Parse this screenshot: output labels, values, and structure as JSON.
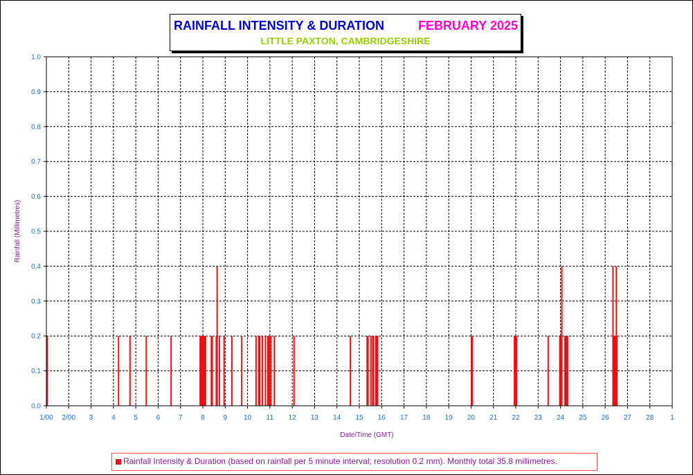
{
  "title": {
    "main": "RAINFALL INTENSITY & DURATION",
    "month": "FEBRUARY 2025",
    "location": "LITTLE PAXTON, CAMBRIDGESHIRE"
  },
  "colors": {
    "title_main": "#0000cc",
    "title_month": "#ff00cc",
    "title_location": "#99cc00",
    "series": "#ee1111",
    "axis_labels": "#8a1a99",
    "tick_labels": "#1a6fc4",
    "grid": "#000000"
  },
  "chart_data": {
    "type": "bar",
    "title": "RAINFALL INTENSITY & DURATION",
    "xlabel": "Date/Time (GMT)",
    "ylabel": "Rainfall (Millimetres)",
    "xlim": [
      1,
      29
    ],
    "ylim": [
      0,
      1.0
    ],
    "grid": true,
    "legend_position": "bottom",
    "x_ticks": [
      1,
      2,
      3,
      4,
      5,
      6,
      7,
      8,
      9,
      10,
      11,
      12,
      13,
      14,
      15,
      16,
      17,
      18,
      19,
      20,
      21,
      22,
      23,
      24,
      25,
      26,
      27,
      28,
      29
    ],
    "x_tick_labels": [
      "1/00",
      "2/00",
      "3",
      "4",
      "5",
      "6",
      "7",
      "8",
      "9",
      "10",
      "11",
      "12",
      "13",
      "14",
      "15",
      "16",
      "17",
      "18",
      "19",
      "20",
      "21",
      "22",
      "23",
      "24",
      "25",
      "26",
      "27",
      "28",
      "1"
    ],
    "y_ticks": [
      0.0,
      0.1,
      0.2,
      0.3,
      0.4,
      0.5,
      0.6,
      0.7,
      0.8,
      0.9,
      1.0
    ],
    "y_tick_labels": [
      "0.0",
      "0.1",
      "0.2",
      "0.3",
      "0.4",
      "0.5",
      "0.6",
      "0.7",
      "0.8",
      "0.9",
      "1.0"
    ],
    "series": [
      {
        "name": "Rainfall Intensity & Duration (based on rainfall per 5 minute interval; resolution 0.2 mm). Monthly total 35.8 millimetres.",
        "points": [
          [
            1.02,
            0.2
          ],
          [
            1.04,
            0.2
          ],
          [
            4.23,
            0.2
          ],
          [
            4.74,
            0.2
          ],
          [
            5.47,
            0.2
          ],
          [
            6.58,
            0.2
          ],
          [
            7.88,
            0.2
          ],
          [
            7.92,
            0.2
          ],
          [
            7.96,
            0.2
          ],
          [
            8.0,
            0.2
          ],
          [
            8.04,
            0.2
          ],
          [
            8.08,
            0.2
          ],
          [
            8.12,
            0.2
          ],
          [
            8.38,
            0.2
          ],
          [
            8.42,
            0.2
          ],
          [
            8.6,
            0.2
          ],
          [
            8.64,
            0.4
          ],
          [
            8.74,
            0.2
          ],
          [
            8.95,
            0.2
          ],
          [
            9.3,
            0.2
          ],
          [
            9.74,
            0.2
          ],
          [
            10.38,
            0.2
          ],
          [
            10.5,
            0.2
          ],
          [
            10.55,
            0.2
          ],
          [
            10.66,
            0.2
          ],
          [
            10.8,
            0.2
          ],
          [
            10.9,
            0.2
          ],
          [
            10.94,
            0.2
          ],
          [
            10.98,
            0.2
          ],
          [
            11.05,
            0.2
          ],
          [
            11.2,
            0.2
          ],
          [
            12.08,
            0.2
          ],
          [
            14.6,
            0.2
          ],
          [
            15.35,
            0.2
          ],
          [
            15.39,
            0.2
          ],
          [
            15.52,
            0.2
          ],
          [
            15.6,
            0.2
          ],
          [
            15.64,
            0.2
          ],
          [
            15.74,
            0.2
          ],
          [
            15.78,
            0.2
          ],
          [
            15.82,
            0.2
          ],
          [
            20.02,
            0.2
          ],
          [
            20.05,
            0.2
          ],
          [
            21.94,
            0.2
          ],
          [
            21.97,
            0.2
          ],
          [
            22.0,
            0.2
          ],
          [
            22.03,
            0.2
          ],
          [
            23.45,
            0.2
          ],
          [
            23.97,
            0.2
          ],
          [
            24.0,
            0.2
          ],
          [
            24.03,
            0.2
          ],
          [
            24.06,
            0.4
          ],
          [
            24.2,
            0.2
          ],
          [
            24.24,
            0.2
          ],
          [
            24.28,
            0.2
          ],
          [
            24.32,
            0.2
          ],
          [
            26.35,
            0.4
          ],
          [
            26.39,
            0.2
          ],
          [
            26.43,
            0.2
          ],
          [
            26.47,
            0.2
          ],
          [
            26.5,
            0.4
          ],
          [
            26.53,
            0.2
          ]
        ]
      }
    ]
  }
}
